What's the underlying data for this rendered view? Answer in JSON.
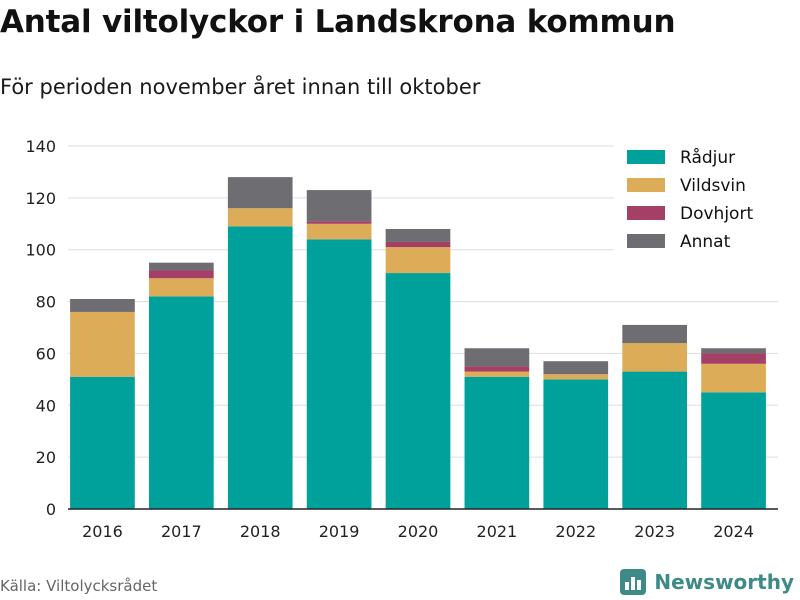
{
  "header": {
    "title": "Antal viltolyckor i Landskrona kommun",
    "subtitle": "För perioden november året innan till oktober"
  },
  "footer": {
    "source": "Källa: Viltolycksrådet",
    "brand": "Newsworthy"
  },
  "chart_data": {
    "type": "bar",
    "stacked": true,
    "categories": [
      "2016",
      "2017",
      "2018",
      "2019",
      "2020",
      "2021",
      "2022",
      "2023",
      "2024"
    ],
    "series": [
      {
        "name": "Rådjur",
        "color": "#00a19a",
        "values": [
          51,
          82,
          109,
          104,
          91,
          51,
          50,
          53,
          45
        ]
      },
      {
        "name": "Vildsvin",
        "color": "#dcac58",
        "values": [
          25,
          7,
          7,
          6,
          10,
          2,
          2,
          11,
          11
        ]
      },
      {
        "name": "Dovhjort",
        "color": "#a63f66",
        "values": [
          0,
          3,
          0,
          1,
          2,
          2,
          0,
          0,
          4
        ]
      },
      {
        "name": "Annat",
        "color": "#6e6e72",
        "values": [
          5,
          3,
          12,
          12,
          5,
          7,
          5,
          7,
          2
        ]
      }
    ],
    "ylim": [
      0,
      140
    ],
    "yticks": [
      0,
      20,
      40,
      60,
      80,
      100,
      120,
      140
    ],
    "grid": true,
    "legend_position": "top-right"
  }
}
